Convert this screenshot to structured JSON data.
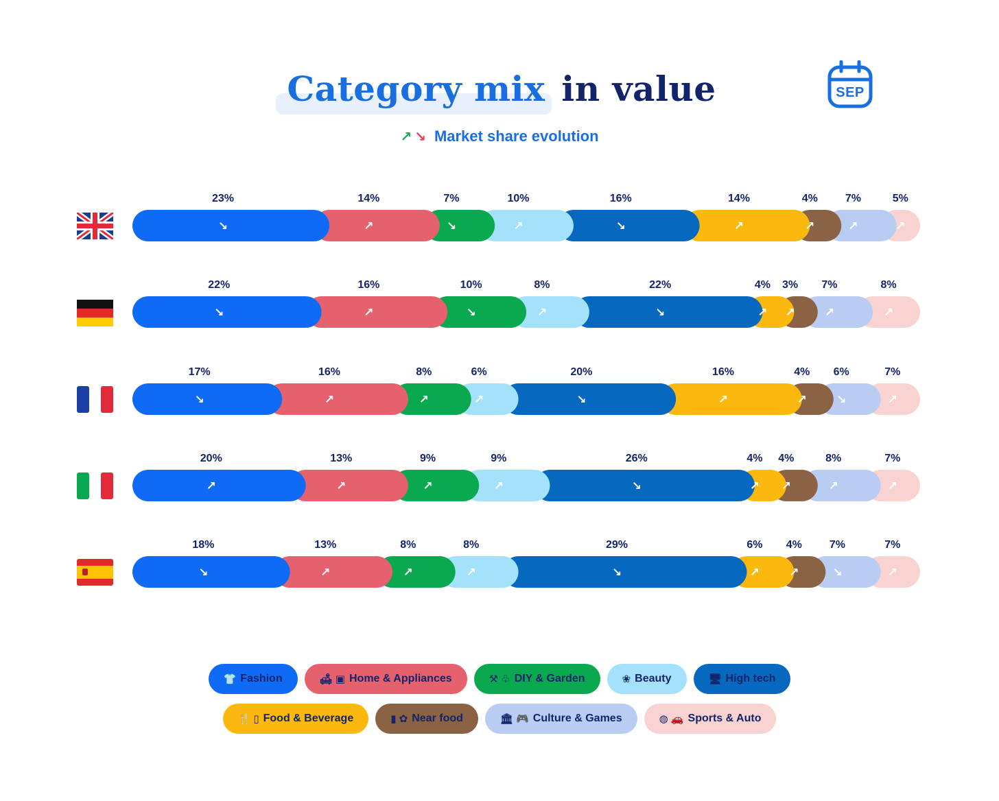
{
  "header": {
    "title_highlight": "Category mix",
    "title_rest": "in value",
    "subtitle_up_icon": "↗",
    "subtitle_down_icon": "↘",
    "subtitle": "Market share evolution",
    "month_badge": "SEP"
  },
  "chart_data": {
    "type": "bar",
    "orientation": "horizontal-stacked",
    "title": "Category mix in value",
    "subtitle": "Market share evolution",
    "unit": "%",
    "categories": [
      "United Kingdom",
      "Germany",
      "France",
      "Italy",
      "Spain"
    ],
    "series": [
      {
        "name": "Fashion",
        "color": "#0f6bf5",
        "values": [
          23,
          22,
          17,
          20,
          18
        ],
        "trend": [
          "down",
          "down",
          "down",
          "up",
          "down"
        ]
      },
      {
        "name": "Home & Appliances",
        "color": "#e5616d",
        "values": [
          14,
          16,
          16,
          13,
          13
        ],
        "trend": [
          "up",
          "up",
          "up",
          "up",
          "up"
        ]
      },
      {
        "name": "DIY & Garden",
        "color": "#0aa84f",
        "values": [
          7,
          10,
          8,
          9,
          8
        ],
        "trend": [
          "down",
          "down",
          "up",
          "up",
          "up"
        ]
      },
      {
        "name": "Beauty",
        "color": "#a3e2fa",
        "values": [
          10,
          8,
          6,
          9,
          8
        ],
        "trend": [
          "up",
          "up",
          "up",
          "up",
          "up"
        ]
      },
      {
        "name": "High tech",
        "color": "#0768c0",
        "values": [
          16,
          22,
          20,
          26,
          29
        ],
        "trend": [
          "down",
          "down",
          "down",
          "down",
          "down"
        ]
      },
      {
        "name": "Food & Beverage",
        "color": "#fbb90f",
        "values": [
          14,
          4,
          16,
          4,
          6
        ],
        "trend": [
          "up",
          "up",
          "up",
          "up",
          "up"
        ]
      },
      {
        "name": "Near food",
        "color": "#8a6244",
        "values": [
          4,
          3,
          4,
          4,
          4
        ],
        "trend": [
          "up",
          "up",
          "up",
          "up",
          "up"
        ]
      },
      {
        "name": "Culture & Games",
        "color": "#b9cdf3",
        "values": [
          7,
          7,
          6,
          8,
          7
        ],
        "trend": [
          "up",
          "up",
          "down",
          "up",
          "down"
        ]
      },
      {
        "name": "Sports & Auto",
        "color": "#f8d3d1",
        "values": [
          5,
          8,
          7,
          7,
          7
        ],
        "trend": [
          "up",
          "up",
          "up",
          "up",
          "up"
        ]
      }
    ],
    "legend_position": "bottom"
  },
  "legend": {
    "row1": [
      {
        "label": "Fashion",
        "icons": "👕",
        "color": "#0f6bf5"
      },
      {
        "label": "Home & Appliances",
        "icons": "🛋 ▣",
        "color": "#e5616d"
      },
      {
        "label": "DIY & Garden",
        "icons": "⚒ ♧",
        "color": "#0aa84f"
      },
      {
        "label": "Beauty",
        "icons": "❀",
        "color": "#a3e2fa"
      },
      {
        "label": "High tech",
        "icons": "🖥",
        "color": "#0768c0"
      }
    ],
    "row2": [
      {
        "label": "Food & Beverage",
        "icons": "🍴 ▯",
        "color": "#fbb90f"
      },
      {
        "label": "Near food",
        "icons": "▮ ✿",
        "color": "#8a6244"
      },
      {
        "label": "Culture & Games",
        "icons": "🏛 🎮",
        "color": "#b9cdf3"
      },
      {
        "label": "Sports & Auto",
        "icons": "◍ 🚗",
        "color": "#f8d3d1"
      }
    ]
  }
}
